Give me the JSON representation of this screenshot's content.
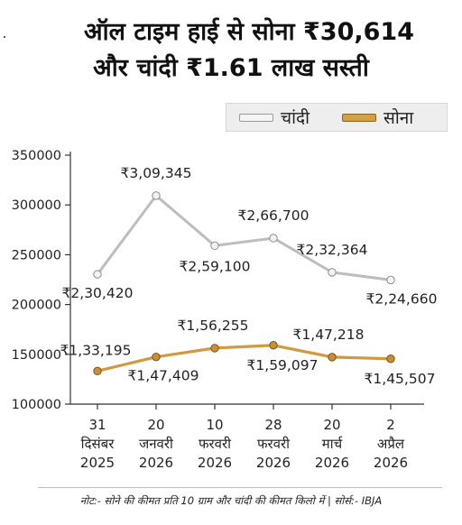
{
  "headline": {
    "line1": "ऑल टाइम हाई से सोना ₹30,614",
    "line2": "और चांदी ₹1.61 लाख सस्ती"
  },
  "legend": {
    "silver": "चांदी",
    "gold": "सोना"
  },
  "chart_data": {
    "type": "line",
    "title": "",
    "xlabel": "",
    "ylabel": "",
    "ylim": [
      100000,
      350000
    ],
    "yticks": [
      100000,
      150000,
      200000,
      250000,
      300000,
      350000
    ],
    "ytick_labels": [
      "100000",
      "150000",
      "200000",
      "250000",
      "300000",
      "350000"
    ],
    "grid": false,
    "legend_position": "top-right",
    "categories": [
      [
        "31",
        "दिसंबर",
        "2025"
      ],
      [
        "20",
        "जनवरी",
        "2026"
      ],
      [
        "10",
        "फरवरी",
        "2026"
      ],
      [
        "28",
        "फरवरी",
        "2026"
      ],
      [
        "20",
        "मार्च",
        "2026"
      ],
      [
        "2",
        "अप्रैल",
        "2026"
      ]
    ],
    "series": [
      {
        "name": "चांदी",
        "color": "#bdbdbd",
        "values": [
          230420,
          309345,
          259100,
          266700,
          232364,
          224660
        ],
        "labels": [
          "₹2,30,420",
          "₹3,09,345",
          "₹2,59,100",
          "₹2,66,700",
          "₹2,32,364",
          "₹2,24,660"
        ]
      },
      {
        "name": "सोना",
        "color": "#d19a3f",
        "values": [
          133195,
          147409,
          156255,
          159097,
          147218,
          145507
        ],
        "labels": [
          "₹1,33,195",
          "₹1,47,409",
          "₹1,56,255",
          "₹1,59,097",
          "₹1,47,218",
          "₹1,45,507"
        ]
      }
    ]
  },
  "note": "नोट:- सोने की कीमत प्रति 10 ग्राम और चांदी की कीमत किलो में | सोर्स:- IBJA"
}
